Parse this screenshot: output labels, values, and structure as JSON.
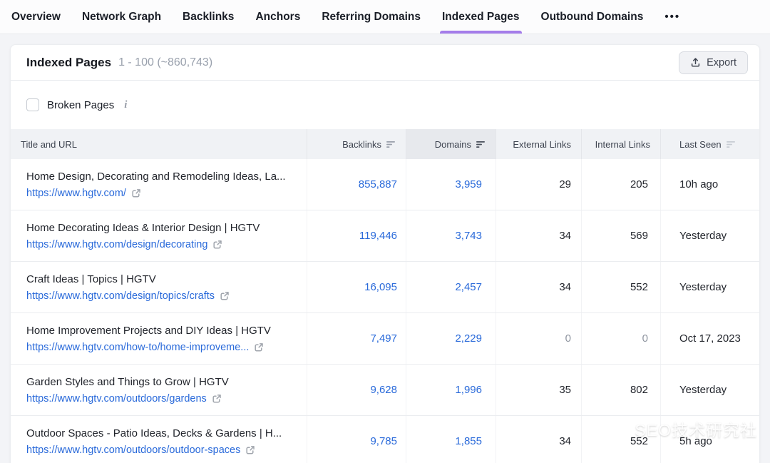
{
  "nav": {
    "tabs": [
      {
        "label": "Overview",
        "active": false
      },
      {
        "label": "Network Graph",
        "active": false
      },
      {
        "label": "Backlinks",
        "active": false
      },
      {
        "label": "Anchors",
        "active": false
      },
      {
        "label": "Referring Domains",
        "active": false
      },
      {
        "label": "Indexed Pages",
        "active": true
      },
      {
        "label": "Outbound Domains",
        "active": false
      }
    ],
    "more_label": "•••"
  },
  "panel": {
    "title": "Indexed Pages",
    "range": "1 - 100 (~860,743)",
    "export_label": "Export"
  },
  "filters": {
    "broken_pages_label": "Broken Pages",
    "broken_pages_checked": false,
    "info_icon": "i"
  },
  "table": {
    "columns": [
      {
        "label": "Title and URL",
        "align": "left",
        "sort": "none",
        "active": false
      },
      {
        "label": "Backlinks",
        "align": "right",
        "sort": "medium",
        "active": false
      },
      {
        "label": "Domains",
        "align": "right",
        "sort": "dark",
        "active": true
      },
      {
        "label": "External Links",
        "align": "right",
        "sort": "none",
        "active": false
      },
      {
        "label": "Internal Links",
        "align": "right",
        "sort": "none",
        "active": false
      },
      {
        "label": "Last Seen",
        "align": "left",
        "sort": "light",
        "active": false
      }
    ],
    "rows": [
      {
        "title": "Home Design, Decorating and Remodeling Ideas, La...",
        "url": "https://www.hgtv.com/",
        "backlinks": "855,887",
        "domains": "3,959",
        "external_links": "29",
        "internal_links": "205",
        "last_seen": "10h ago"
      },
      {
        "title": "Home Decorating Ideas & Interior Design | HGTV",
        "url": "https://www.hgtv.com/design/decorating",
        "backlinks": "119,446",
        "domains": "3,743",
        "external_links": "34",
        "internal_links": "569",
        "last_seen": "Yesterday"
      },
      {
        "title": "Craft Ideas | Topics | HGTV",
        "url": "https://www.hgtv.com/design/topics/crafts",
        "backlinks": "16,095",
        "domains": "2,457",
        "external_links": "34",
        "internal_links": "552",
        "last_seen": "Yesterday"
      },
      {
        "title": "Home Improvement Projects and DIY Ideas | HGTV",
        "url": "https://www.hgtv.com/how-to/home-improveme...",
        "backlinks": "7,497",
        "domains": "2,229",
        "external_links": "0",
        "internal_links": "0",
        "last_seen": "Oct 17, 2023"
      },
      {
        "title": "Garden Styles and Things to Grow | HGTV",
        "url": "https://www.hgtv.com/outdoors/gardens",
        "backlinks": "9,628",
        "domains": "1,996",
        "external_links": "35",
        "internal_links": "802",
        "last_seen": "Yesterday"
      },
      {
        "title": "Outdoor Spaces - Patio Ideas, Decks & Gardens | H...",
        "url": "https://www.hgtv.com/outdoors/outdoor-spaces",
        "backlinks": "9,785",
        "domains": "1,855",
        "external_links": "34",
        "internal_links": "552",
        "last_seen": "5h ago"
      }
    ]
  },
  "watermark": {
    "text": "SEO技术研究社"
  },
  "colors": {
    "accent_purple": "#a47cea",
    "link_blue": "#2a6ada",
    "muted_gray": "#8f95a0",
    "header_bg": "#f0f2f5",
    "active_col_bg": "#e7e9ed"
  }
}
